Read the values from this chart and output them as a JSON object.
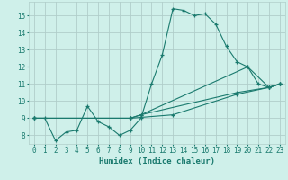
{
  "xlabel": "Humidex (Indice chaleur)",
  "xlim": [
    -0.5,
    23.5
  ],
  "ylim": [
    7.5,
    15.8
  ],
  "yticks": [
    8,
    9,
    10,
    11,
    12,
    13,
    14,
    15
  ],
  "xticks": [
    0,
    1,
    2,
    3,
    4,
    5,
    6,
    7,
    8,
    9,
    10,
    11,
    12,
    13,
    14,
    15,
    16,
    17,
    18,
    19,
    20,
    21,
    22,
    23
  ],
  "bg_color": "#cff0ea",
  "grid_color": "#b0ceca",
  "line_color": "#1a7a6e",
  "lines": [
    {
      "x": [
        0,
        1,
        2,
        3,
        4,
        5,
        6,
        7,
        8,
        9,
        10,
        11,
        12,
        13,
        14,
        15,
        16,
        17,
        18,
        19,
        20,
        21,
        22,
        23
      ],
      "y": [
        9.0,
        9.0,
        7.7,
        8.2,
        8.3,
        9.7,
        8.8,
        8.5,
        8.0,
        8.3,
        9.0,
        11.0,
        12.7,
        15.4,
        15.3,
        15.0,
        15.1,
        14.5,
        13.2,
        12.3,
        12.0,
        11.0,
        10.8,
        11.0
      ]
    },
    {
      "x": [
        0,
        9,
        10,
        19,
        22,
        23
      ],
      "y": [
        9.0,
        9.0,
        9.2,
        10.5,
        10.8,
        11.0
      ]
    },
    {
      "x": [
        0,
        9,
        10,
        20,
        22,
        23
      ],
      "y": [
        9.0,
        9.0,
        9.2,
        12.0,
        10.8,
        11.0
      ]
    },
    {
      "x": [
        0,
        9,
        13,
        19,
        22,
        23
      ],
      "y": [
        9.0,
        9.0,
        9.2,
        10.4,
        10.8,
        11.0
      ]
    }
  ]
}
